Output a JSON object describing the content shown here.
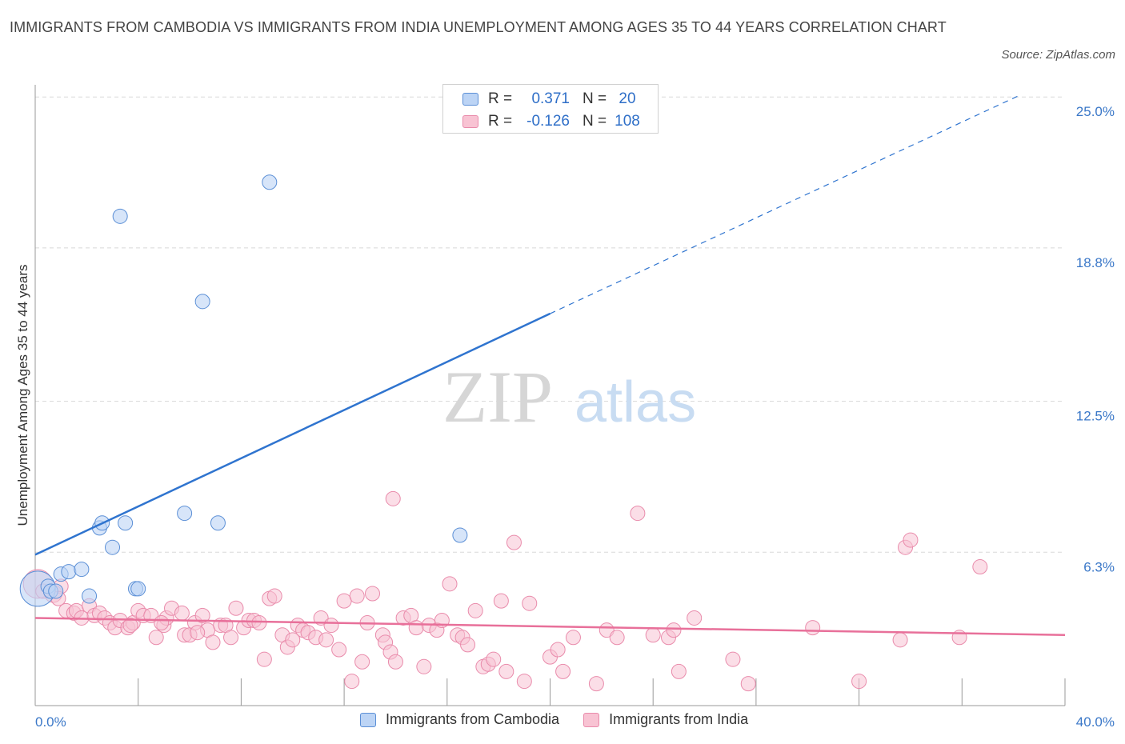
{
  "title": "IMMIGRANTS FROM CAMBODIA VS IMMIGRANTS FROM INDIA UNEMPLOYMENT AMONG AGES 35 TO 44 YEARS CORRELATION CHART",
  "source": "Source: ZipAtlas.com",
  "watermark": {
    "zip": "ZIP",
    "atlas": "atlas"
  },
  "legend": {
    "r_label": "R =",
    "n_label": "N =",
    "rows": [
      {
        "r": "0.371",
        "n": "20",
        "color": "#bcd4f5",
        "border": "#5b8fd6"
      },
      {
        "r": "-0.126",
        "n": "108",
        "color": "#f8c3d3",
        "border": "#e98bab"
      }
    ]
  },
  "bottom_legend": [
    "Immigrants from Cambodia",
    "Immigrants from India"
  ],
  "colors": {
    "blue_line": "#2f74cf",
    "pink_line": "#e8709a",
    "tick_text": "#3b78c8",
    "grid": "#d8d8d8"
  },
  "chart_data": {
    "type": "scatter",
    "title": "IMMIGRANTS FROM CAMBODIA VS IMMIGRANTS FROM INDIA UNEMPLOYMENT AMONG AGES 35 TO 44 YEARS CORRELATION CHART",
    "xlabel": "",
    "ylabel": "Unemployment Among Ages 35 to 44 years",
    "xlim": [
      0,
      40
    ],
    "ylim": [
      0,
      25.5
    ],
    "x_tick_labels": [
      "0.0%",
      "40.0%"
    ],
    "y_ticks": [
      6.3,
      12.5,
      18.8,
      25.0
    ],
    "y_tick_labels": [
      "6.3%",
      "12.5%",
      "18.8%",
      "25.0%"
    ],
    "grid": true,
    "series": [
      {
        "name": "Immigrants from Cambodia",
        "color": "#bcd4f5",
        "stroke": "#5b8fd6",
        "r": 0.371,
        "n": 20,
        "trend": {
          "x0": 0,
          "y0": 6.2,
          "x1": 20,
          "y1": 16.1,
          "dashed_to_x": 38.3,
          "dashed_to_y": 25.1
        },
        "points": [
          [
            0.1,
            4.8,
            22
          ],
          [
            0.5,
            4.9,
            9
          ],
          [
            0.6,
            4.7,
            9
          ],
          [
            0.8,
            4.7,
            9
          ],
          [
            1.0,
            5.4,
            9
          ],
          [
            1.3,
            5.5,
            9
          ],
          [
            1.8,
            5.6,
            9
          ],
          [
            2.1,
            4.5,
            9
          ],
          [
            2.5,
            7.3,
            9
          ],
          [
            2.6,
            7.5,
            9
          ],
          [
            3.0,
            6.5,
            9
          ],
          [
            3.3,
            20.1,
            9
          ],
          [
            3.5,
            7.5,
            9
          ],
          [
            3.9,
            4.8,
            9
          ],
          [
            4.0,
            4.8,
            9
          ],
          [
            5.8,
            7.9,
            9
          ],
          [
            6.5,
            16.6,
            9
          ],
          [
            7.1,
            7.5,
            9
          ],
          [
            9.1,
            21.5,
            9
          ],
          [
            16.5,
            7.0,
            9
          ]
        ]
      },
      {
        "name": "Immigrants from India",
        "color": "#f8c3d3",
        "stroke": "#e98bab",
        "r": -0.126,
        "n": 108,
        "trend": {
          "x0": 0,
          "y0": 3.6,
          "x1": 40,
          "y1": 2.9
        },
        "points": [
          [
            0.1,
            5.0,
            18
          ],
          [
            0.7,
            4.6,
            11
          ],
          [
            1.2,
            3.9,
            9
          ],
          [
            1.5,
            3.8,
            9
          ],
          [
            1.6,
            3.9,
            9
          ],
          [
            1.8,
            3.6,
            9
          ],
          [
            2.1,
            4.1,
            9
          ],
          [
            2.3,
            3.7,
            9
          ],
          [
            2.5,
            3.8,
            9
          ],
          [
            2.7,
            3.6,
            9
          ],
          [
            2.9,
            3.4,
            9
          ],
          [
            3.1,
            3.2,
            9
          ],
          [
            3.3,
            3.5,
            9
          ],
          [
            3.6,
            3.2,
            9
          ],
          [
            3.8,
            3.4,
            9
          ],
          [
            4.0,
            3.9,
            9
          ],
          [
            4.2,
            3.7,
            9
          ],
          [
            4.5,
            3.7,
            9
          ],
          [
            4.7,
            2.8,
            9
          ],
          [
            5.0,
            3.3,
            9
          ],
          [
            5.1,
            3.6,
            9
          ],
          [
            5.3,
            4.0,
            9
          ],
          [
            5.7,
            3.8,
            9
          ],
          [
            5.8,
            2.9,
            9
          ],
          [
            6.0,
            2.9,
            9
          ],
          [
            6.2,
            3.4,
            9
          ],
          [
            6.5,
            3.7,
            9
          ],
          [
            6.7,
            3.1,
            9
          ],
          [
            6.9,
            2.6,
            9
          ],
          [
            7.2,
            3.3,
            9
          ],
          [
            7.4,
            3.3,
            9
          ],
          [
            7.6,
            2.8,
            9
          ],
          [
            7.8,
            4.0,
            9
          ],
          [
            8.1,
            3.2,
            9
          ],
          [
            8.3,
            3.5,
            9
          ],
          [
            8.5,
            3.5,
            9
          ],
          [
            8.7,
            3.4,
            9
          ],
          [
            8.9,
            1.9,
            9
          ],
          [
            9.1,
            4.4,
            9
          ],
          [
            9.3,
            4.5,
            9
          ],
          [
            9.6,
            2.9,
            9
          ],
          [
            9.8,
            2.4,
            9
          ],
          [
            10.0,
            2.7,
            9
          ],
          [
            10.2,
            3.3,
            9
          ],
          [
            10.4,
            3.1,
            9
          ],
          [
            10.6,
            3.0,
            9
          ],
          [
            10.9,
            2.8,
            9
          ],
          [
            11.1,
            3.6,
            9
          ],
          [
            11.3,
            2.7,
            9
          ],
          [
            11.5,
            3.3,
            9
          ],
          [
            11.8,
            2.3,
            9
          ],
          [
            12.0,
            4.3,
            9
          ],
          [
            12.3,
            1.0,
            9
          ],
          [
            12.5,
            4.5,
            9
          ],
          [
            12.7,
            1.8,
            9
          ],
          [
            12.9,
            3.4,
            9
          ],
          [
            13.1,
            4.6,
            9
          ],
          [
            13.5,
            2.9,
            9
          ],
          [
            13.6,
            2.6,
            9
          ],
          [
            13.8,
            2.2,
            9
          ],
          [
            14.0,
            1.8,
            9
          ],
          [
            14.3,
            3.6,
            9
          ],
          [
            14.6,
            3.7,
            9
          ],
          [
            14.8,
            3.2,
            9
          ],
          [
            15.1,
            1.6,
            9
          ],
          [
            15.3,
            3.3,
            9
          ],
          [
            15.6,
            3.1,
            9
          ],
          [
            15.8,
            3.5,
            9
          ],
          [
            16.1,
            5.0,
            9
          ],
          [
            16.4,
            2.9,
            9
          ],
          [
            16.6,
            2.8,
            9
          ],
          [
            16.8,
            2.5,
            9
          ],
          [
            17.1,
            3.9,
            9
          ],
          [
            17.4,
            1.6,
            9
          ],
          [
            17.6,
            1.7,
            9
          ],
          [
            17.8,
            1.9,
            9
          ],
          [
            18.1,
            4.3,
            9
          ],
          [
            18.3,
            1.4,
            9
          ],
          [
            18.6,
            6.7,
            9
          ],
          [
            19.0,
            1.0,
            9
          ],
          [
            19.2,
            4.2,
            9
          ],
          [
            20.0,
            2.0,
            9
          ],
          [
            20.3,
            2.3,
            9
          ],
          [
            20.5,
            1.4,
            9
          ],
          [
            20.9,
            2.8,
            9
          ],
          [
            21.8,
            0.9,
            9
          ],
          [
            22.2,
            3.1,
            9
          ],
          [
            22.6,
            2.8,
            9
          ],
          [
            23.4,
            7.9,
            9
          ],
          [
            24.0,
            2.9,
            9
          ],
          [
            24.6,
            2.8,
            9
          ],
          [
            24.8,
            3.1,
            9
          ],
          [
            25.0,
            1.4,
            9
          ],
          [
            25.6,
            3.6,
            9
          ],
          [
            27.1,
            1.9,
            9
          ],
          [
            27.7,
            0.9,
            9
          ],
          [
            30.2,
            3.2,
            9
          ],
          [
            32.0,
            1.0,
            9
          ],
          [
            33.6,
            2.7,
            9
          ],
          [
            33.8,
            6.5,
            9
          ],
          [
            34.0,
            6.8,
            9
          ],
          [
            35.9,
            2.8,
            9
          ],
          [
            36.7,
            5.7,
            9
          ],
          [
            0.3,
            4.7,
            9
          ],
          [
            1.0,
            4.9,
            9
          ],
          [
            0.9,
            4.4,
            9
          ],
          [
            4.9,
            3.4,
            9
          ],
          [
            6.3,
            3.0,
            9
          ],
          [
            13.9,
            8.5,
            9
          ],
          [
            3.7,
            3.3,
            9
          ]
        ]
      }
    ]
  }
}
